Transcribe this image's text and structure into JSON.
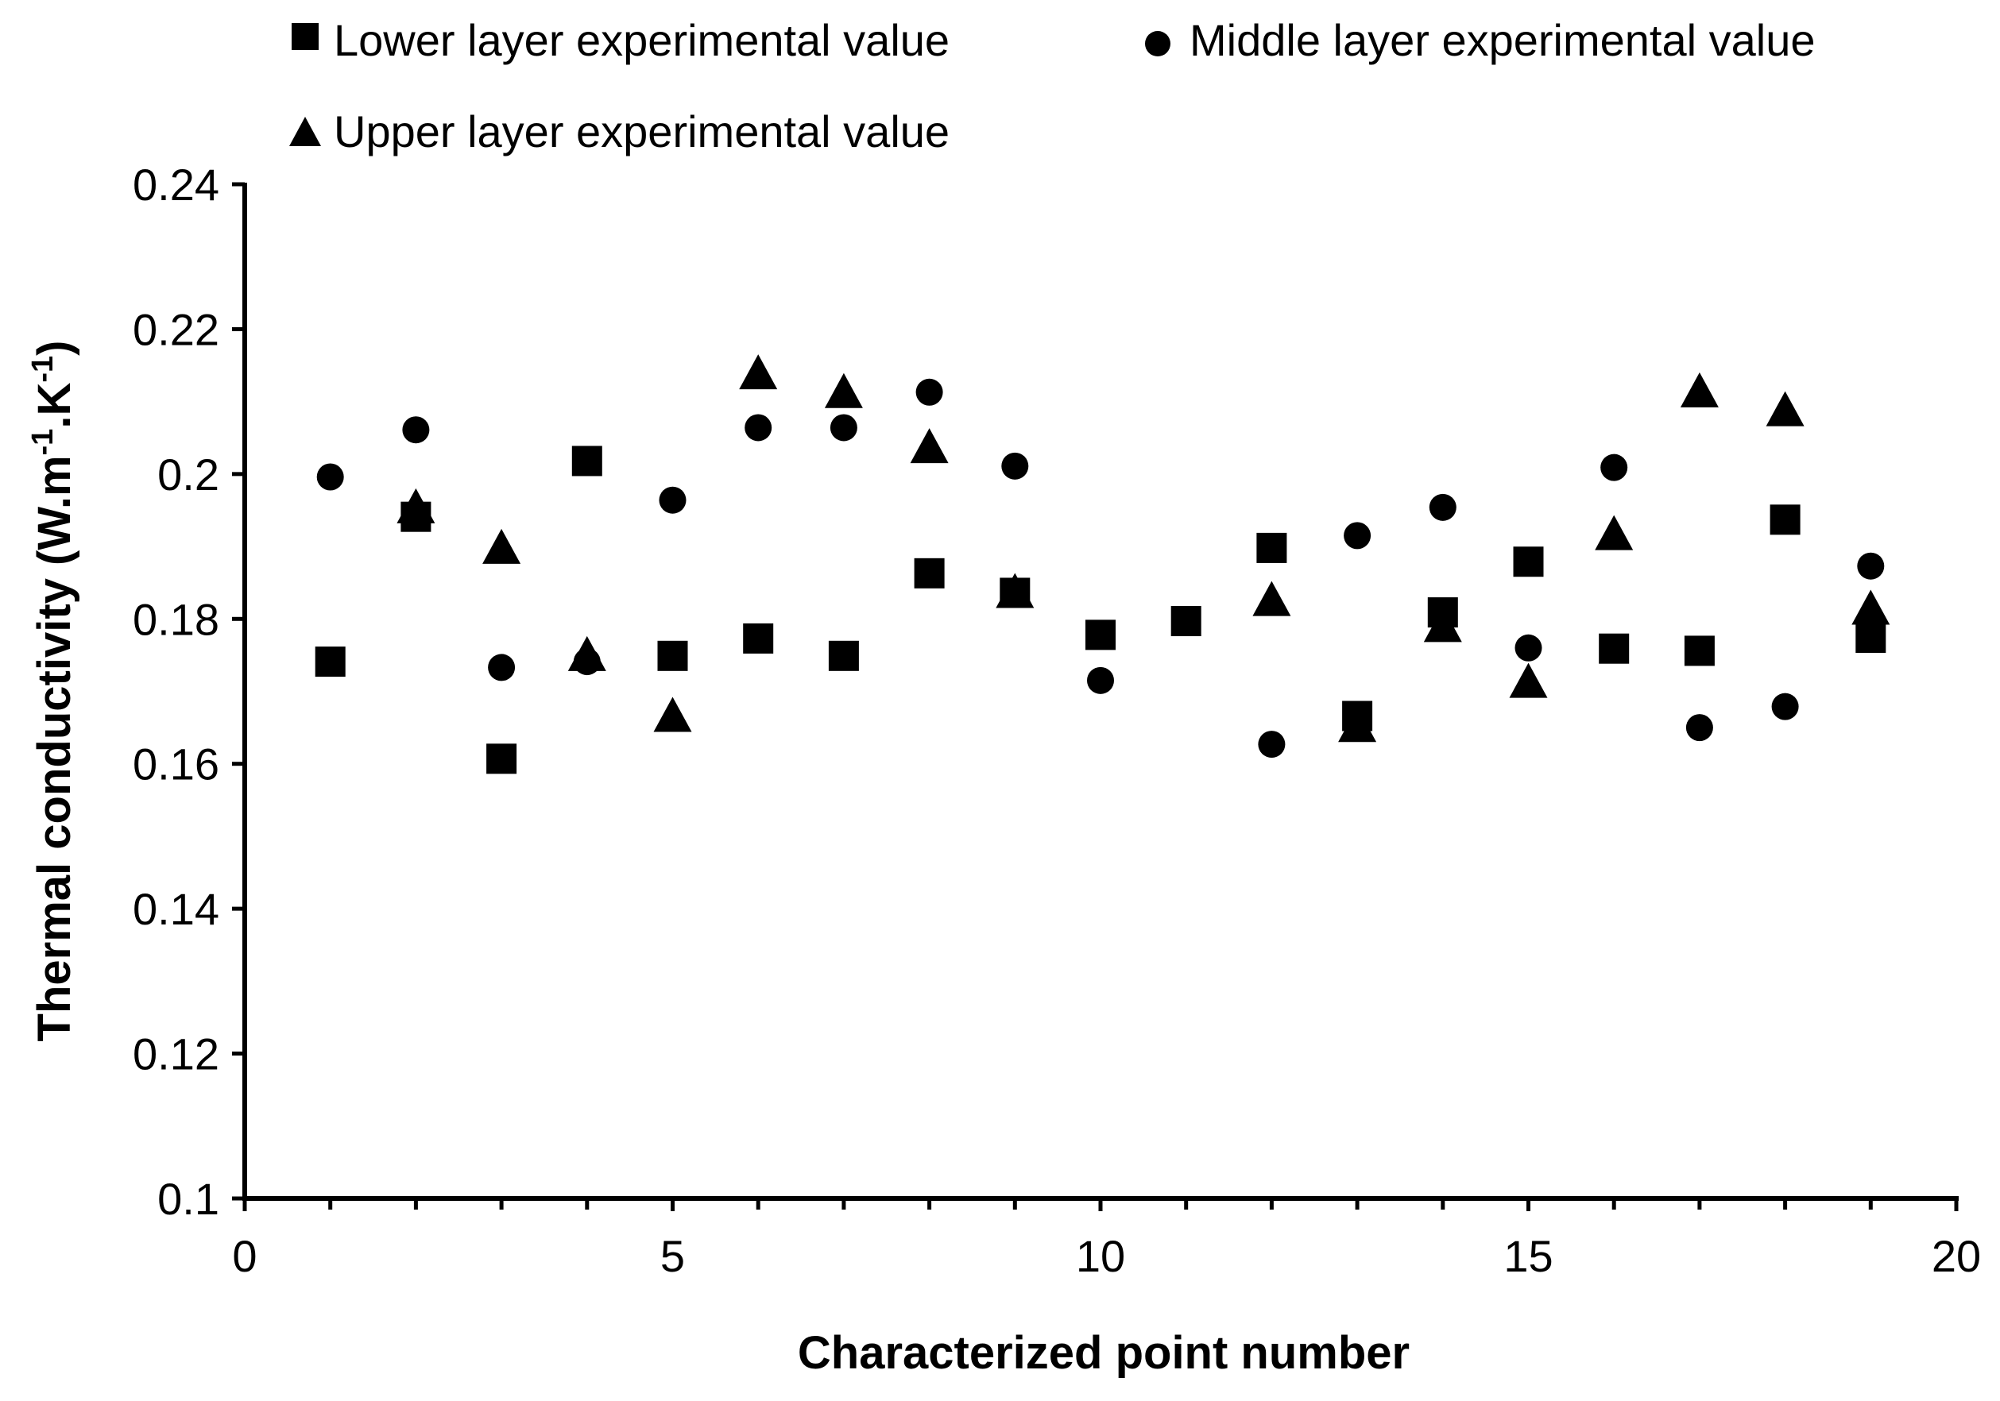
{
  "chart_data": {
    "type": "scatter",
    "title": "",
    "xlabel": "Characterized point number",
    "ylabel_parts": {
      "pre": "Thermal conductivity (W.m",
      "sup1": "-1",
      "mid": ".K",
      "sup2": "-1",
      "post": ")"
    },
    "xlim": [
      0,
      20
    ],
    "ylim": [
      0.1,
      0.24
    ],
    "x_ticks": [
      0,
      5,
      10,
      15,
      20
    ],
    "x_tick_labels": [
      "0",
      "5",
      "10",
      "15",
      "20"
    ],
    "y_ticks": [
      0.1,
      0.12,
      0.14,
      0.16,
      0.18,
      0.2,
      0.22,
      0.24
    ],
    "y_tick_labels": [
      "0.1",
      "0.12",
      "0.14",
      "0.16",
      "0.18",
      "0.2",
      "0.22",
      "0.24"
    ],
    "x_minor_ticks": [
      1,
      2,
      3,
      4,
      6,
      7,
      8,
      9,
      11,
      12,
      13,
      14,
      16,
      17,
      18,
      19
    ],
    "grid": false,
    "legend_position": "top",
    "series": [
      {
        "name": "Lower layer experimental value",
        "marker": "square",
        "color": "#000000",
        "x": [
          1,
          2,
          3,
          4,
          5,
          6,
          7,
          8,
          9,
          10,
          11,
          12,
          13,
          14,
          15,
          16,
          17,
          18,
          19
        ],
        "y": [
          0.1741,
          0.1941,
          0.1607,
          0.2018,
          0.1749,
          0.1773,
          0.1749,
          0.1863,
          0.1836,
          0.1778,
          0.1797,
          0.1898,
          0.1666,
          0.1809,
          0.1879,
          0.1759,
          0.1756,
          0.1937,
          0.1774
        ]
      },
      {
        "name": "Middle layer experimental value",
        "marker": "circle",
        "color": "#000000",
        "x": [
          1,
          2,
          3,
          4,
          5,
          6,
          7,
          8,
          9,
          10,
          12,
          13,
          14,
          15,
          16,
          17,
          18,
          19
        ],
        "y": [
          0.1996,
          0.2061,
          0.1733,
          0.1741,
          0.1964,
          0.2064,
          0.2064,
          0.2113,
          0.2011,
          0.1715,
          0.1627,
          0.1915,
          0.1954,
          0.176,
          0.2009,
          0.165,
          0.1679,
          0.1873
        ]
      },
      {
        "name": "Upper layer experimental value",
        "marker": "triangle",
        "color": "#000000",
        "x": [
          2,
          3,
          4,
          5,
          6,
          7,
          8,
          9,
          12,
          13,
          14,
          15,
          16,
          17,
          18,
          19
        ],
        "y": [
          0.1954,
          0.1898,
          0.175,
          0.1666,
          0.2139,
          0.2113,
          0.2037,
          0.1837,
          0.1826,
          0.1652,
          0.179,
          0.1713,
          0.1917,
          0.2114,
          0.2088,
          0.1814
        ]
      }
    ]
  }
}
